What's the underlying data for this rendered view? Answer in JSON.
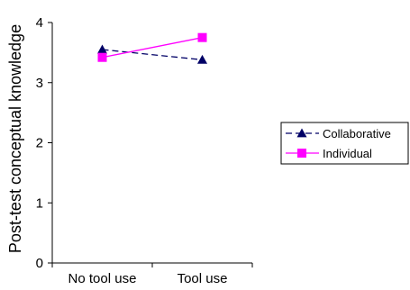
{
  "chart_data": {
    "type": "line",
    "categories": [
      "No tool use",
      "Tool use"
    ],
    "series": [
      {
        "name": "Collaborative",
        "values": [
          3.55,
          3.38
        ],
        "color": "#000066",
        "line_style": "dashed",
        "marker": "triangle"
      },
      {
        "name": "Individual",
        "values": [
          3.42,
          3.75
        ],
        "color": "#FF00FF",
        "line_style": "solid",
        "marker": "square"
      }
    ],
    "title": "",
    "xlabel": "",
    "ylabel": "Post-test conceptual knowledge",
    "ylim": [
      0,
      4
    ],
    "yticks": [
      "0",
      "1",
      "2",
      "3",
      "4"
    ],
    "grid": false,
    "legend_position": "right"
  }
}
